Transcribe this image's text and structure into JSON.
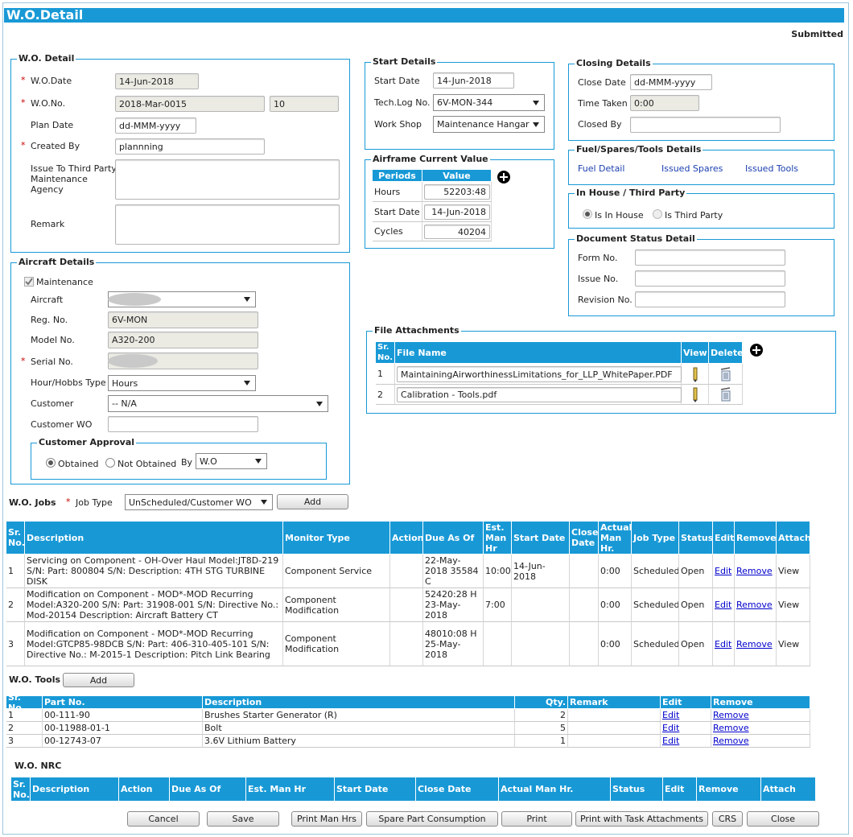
{
  "header": {
    "title": "W.O.Detail",
    "status": "Submitted"
  },
  "required_mark": "*",
  "wo_detail": {
    "legend": "W.O. Detail",
    "wo_date_label": "W.O.Date",
    "wo_date": "14-Jun-2018",
    "wo_no_label": "W.O.No.",
    "wo_no": "2018-Mar-0015",
    "wo_no_suffix": "10",
    "plan_date_label": "Plan Date",
    "plan_date": "dd-MMM-yyyy",
    "created_by_label": "Created By",
    "created_by": "plannning",
    "issue_to_label": "Issue To Third Party Maintenance Agency",
    "remark_label": "Remark"
  },
  "aircraft_details": {
    "legend": "Aircraft Details",
    "maintenance_label": "Maintenance",
    "aircraft_label": "Aircraft",
    "reg_no_label": "Reg. No.",
    "reg_no": "6V-MON",
    "model_no_label": "Model No.",
    "model_no": "A320-200",
    "serial_no_label": "Serial No.",
    "hour_type_label": "Hour/Hobbs Type",
    "hour_type": "Hours",
    "customer_label": "Customer",
    "customer": "-- N/A",
    "customer_wo_label": "Customer  WO",
    "customer_approval": {
      "legend": "Customer Approval",
      "obtained": "Obtained",
      "not_obtained": "Not Obtained",
      "by_label": "By",
      "by": "W.O"
    }
  },
  "start_details": {
    "legend": "Start Details",
    "start_date_label": "Start Date",
    "start_date": "14-Jun-2018",
    "tech_log_label": "Tech.Log No.",
    "tech_log": "6V-MON-344",
    "work_shop_label": "Work Shop",
    "work_shop": "Maintenance Hangar"
  },
  "airframe": {
    "legend": "Airframe Current Value",
    "columns": [
      "Periods",
      "Value"
    ],
    "rows": [
      [
        "Hours",
        "52203:48"
      ],
      [
        "Start Date",
        "14-Jun-2018"
      ],
      [
        "Cycles",
        "40204"
      ]
    ]
  },
  "closing_details": {
    "legend": "Closing Details",
    "close_date_label": "Close Date",
    "close_date": "dd-MMM-yyyy",
    "time_taken_label": "Time Taken",
    "time_taken": "0:00",
    "closed_by_label": "Closed By"
  },
  "fuel_spares_tools": {
    "legend": "Fuel/Spares/Tools Details",
    "links": [
      "Fuel Detail",
      "Issued Spares",
      "Issued Tools"
    ]
  },
  "in_house": {
    "legend": "In House / Third Party",
    "options": [
      "Is In House",
      "Is Third Party"
    ]
  },
  "document_status": {
    "legend": "Document Status Detail",
    "fields": [
      "Form No.",
      "Issue No.",
      "Revision No."
    ]
  },
  "file_attachments": {
    "legend": "File Attachments",
    "columns": [
      "Sr. No.",
      "File Name",
      "View",
      "Delete"
    ],
    "rows": [
      [
        "1",
        "MaintainingAirworthinessLimitations_for_LLP_WhitePaper.PDF"
      ],
      [
        "2",
        "Calibration - Tools.pdf"
      ]
    ]
  },
  "wo_jobs": {
    "title": "W.O. Jobs",
    "job_type_label": "Job Type",
    "job_type": "UnScheduled/Customer WO",
    "add": "Add",
    "columns": [
      "Sr. No.",
      "Description",
      "Monitor Type",
      "Action",
      "Due As Of",
      "Est. Man Hr",
      "Start Date",
      "Close Date",
      "Actual Man Hr.",
      "Job Type",
      "Status",
      "Edit",
      "Remove",
      "Attach"
    ],
    "rows": [
      {
        "sr": "1",
        "description": "Servicing on Component - OH-Over Haul Model:JT8D-219 S/N: Part: 800804 S/N: Description: 4TH STG TURBINE DISK",
        "monitor_type": "Component Service",
        "due_as_of": "22-May-2018 35584 C",
        "est_man_hr": "10:00",
        "start_date": "14-Jun-2018",
        "actual_man_hr": "0:00",
        "job_type": "Scheduled",
        "status": "Open",
        "edit": "Edit",
        "remove": "Remove",
        "attach": "View"
      },
      {
        "sr": "2",
        "description": "Modification on Component - MOD*-MOD Recurring Model:A320-200 S/N: Part: 31908-001 S/N: Directive No.: Mod-20154 Description: Aircraft Battery CT",
        "monitor_type": "Component Modification",
        "due_as_of": "52420:28 H 23-May-2018",
        "est_man_hr": "7:00",
        "actual_man_hr": "0:00",
        "job_type": "Scheduled",
        "status": "Open",
        "edit": "Edit",
        "remove": "Remove",
        "attach": "View"
      },
      {
        "sr": "3",
        "description": "Modification on Component - MOD*-MOD Recurring Model:GTCP85-98DCB S/N: Part: 406-310-405-101 S/N: Directive No.: M-2015-1 Description: Pitch Link Bearing",
        "monitor_type": "Component Modification",
        "due_as_of": "48010:08 H 25-May-2018",
        "actual_man_hr": "0:00",
        "job_type": "Scheduled",
        "status": "Open",
        "edit": "Edit",
        "remove": "Remove",
        "attach": "View"
      }
    ]
  },
  "wo_tools": {
    "title": "W.O. Tools",
    "add": "Add",
    "columns": [
      "Sr. No.",
      "Part No.",
      "Description",
      "Qty.",
      "Remark",
      "Edit",
      "Remove"
    ],
    "rows": [
      {
        "sr": "1",
        "part_no": "00-111-90",
        "description": "Brushes Starter Generator (R)",
        "qty": "2",
        "edit": "Edit",
        "remove": "Remove"
      },
      {
        "sr": "2",
        "part_no": "00-11988-01-1",
        "description": "Bolt",
        "qty": "5",
        "edit": "Edit",
        "remove": "Remove"
      },
      {
        "sr": "3",
        "part_no": "00-12743-07",
        "description": "3.6V Lithium Battery",
        "qty": "1",
        "edit": "Edit",
        "remove": "Remove"
      }
    ]
  },
  "wo_nrc": {
    "title": "W.O. NRC",
    "columns": [
      "Sr. No.",
      "Description",
      "Action",
      "Due As Of",
      "Est. Man Hr",
      "Start Date",
      "Close Date",
      "Actual Man Hr.",
      "Status",
      "Edit",
      "Remove",
      "Attach"
    ]
  },
  "buttons": [
    "Cancel",
    "Save",
    "Print Man Hrs",
    "Spare Part Consumption",
    "Print",
    "Print with Task Attachments",
    "CRS",
    "Close"
  ]
}
